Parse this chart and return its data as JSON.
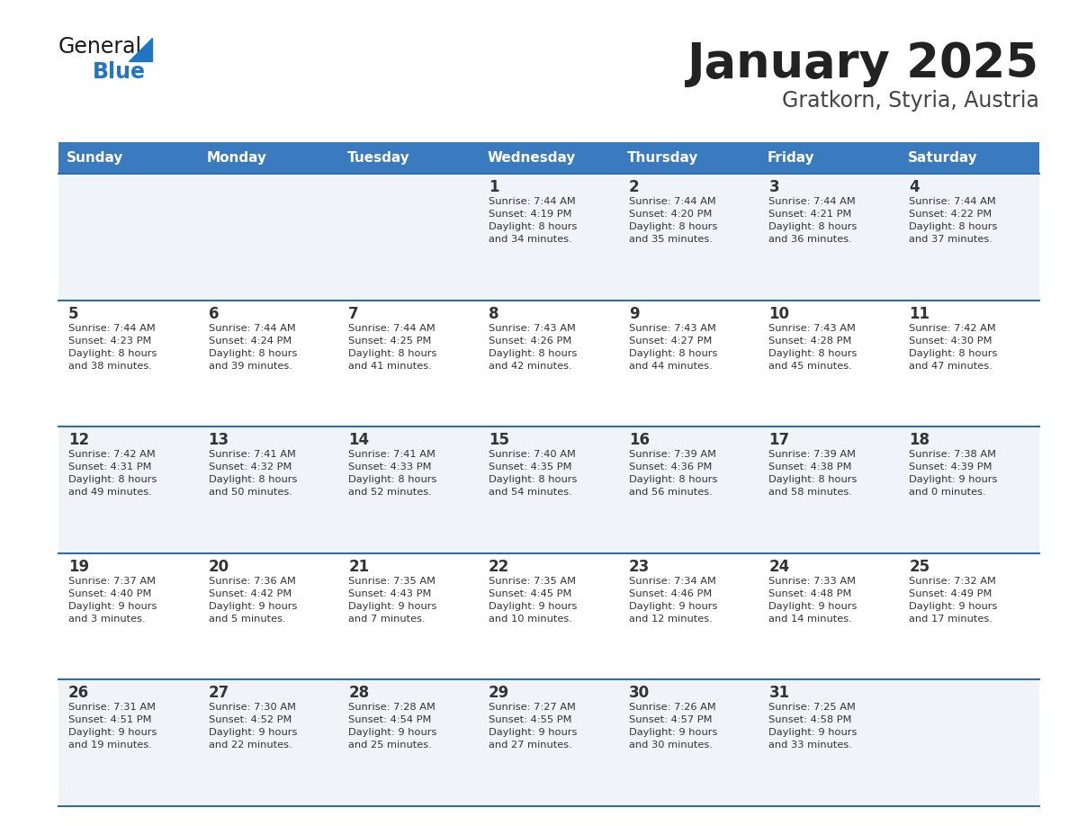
{
  "title": "January 2025",
  "subtitle": "Gratkorn, Styria, Austria",
  "days_of_week": [
    "Sunday",
    "Monday",
    "Tuesday",
    "Wednesday",
    "Thursday",
    "Friday",
    "Saturday"
  ],
  "header_bg": "#3a7abf",
  "header_text": "#ffffff",
  "row_bg_odd": "#f0f4f8",
  "row_bg_even": "#ffffff",
  "separator_color": "#2e6da4",
  "day_number_color": "#333333",
  "cell_text_color": "#333333",
  "title_color": "#222222",
  "subtitle_color": "#444444",
  "logo_color_general": "#1a1a1a",
  "logo_color_blue": "#2176c2",
  "logo_triangle_color": "#2176c2",
  "calendar": [
    [
      {
        "day": null,
        "info": null
      },
      {
        "day": null,
        "info": null
      },
      {
        "day": null,
        "info": null
      },
      {
        "day": 1,
        "info": "Sunrise: 7:44 AM\nSunset: 4:19 PM\nDaylight: 8 hours\nand 34 minutes."
      },
      {
        "day": 2,
        "info": "Sunrise: 7:44 AM\nSunset: 4:20 PM\nDaylight: 8 hours\nand 35 minutes."
      },
      {
        "day": 3,
        "info": "Sunrise: 7:44 AM\nSunset: 4:21 PM\nDaylight: 8 hours\nand 36 minutes."
      },
      {
        "day": 4,
        "info": "Sunrise: 7:44 AM\nSunset: 4:22 PM\nDaylight: 8 hours\nand 37 minutes."
      }
    ],
    [
      {
        "day": 5,
        "info": "Sunrise: 7:44 AM\nSunset: 4:23 PM\nDaylight: 8 hours\nand 38 minutes."
      },
      {
        "day": 6,
        "info": "Sunrise: 7:44 AM\nSunset: 4:24 PM\nDaylight: 8 hours\nand 39 minutes."
      },
      {
        "day": 7,
        "info": "Sunrise: 7:44 AM\nSunset: 4:25 PM\nDaylight: 8 hours\nand 41 minutes."
      },
      {
        "day": 8,
        "info": "Sunrise: 7:43 AM\nSunset: 4:26 PM\nDaylight: 8 hours\nand 42 minutes."
      },
      {
        "day": 9,
        "info": "Sunrise: 7:43 AM\nSunset: 4:27 PM\nDaylight: 8 hours\nand 44 minutes."
      },
      {
        "day": 10,
        "info": "Sunrise: 7:43 AM\nSunset: 4:28 PM\nDaylight: 8 hours\nand 45 minutes."
      },
      {
        "day": 11,
        "info": "Sunrise: 7:42 AM\nSunset: 4:30 PM\nDaylight: 8 hours\nand 47 minutes."
      }
    ],
    [
      {
        "day": 12,
        "info": "Sunrise: 7:42 AM\nSunset: 4:31 PM\nDaylight: 8 hours\nand 49 minutes."
      },
      {
        "day": 13,
        "info": "Sunrise: 7:41 AM\nSunset: 4:32 PM\nDaylight: 8 hours\nand 50 minutes."
      },
      {
        "day": 14,
        "info": "Sunrise: 7:41 AM\nSunset: 4:33 PM\nDaylight: 8 hours\nand 52 minutes."
      },
      {
        "day": 15,
        "info": "Sunrise: 7:40 AM\nSunset: 4:35 PM\nDaylight: 8 hours\nand 54 minutes."
      },
      {
        "day": 16,
        "info": "Sunrise: 7:39 AM\nSunset: 4:36 PM\nDaylight: 8 hours\nand 56 minutes."
      },
      {
        "day": 17,
        "info": "Sunrise: 7:39 AM\nSunset: 4:38 PM\nDaylight: 8 hours\nand 58 minutes."
      },
      {
        "day": 18,
        "info": "Sunrise: 7:38 AM\nSunset: 4:39 PM\nDaylight: 9 hours\nand 0 minutes."
      }
    ],
    [
      {
        "day": 19,
        "info": "Sunrise: 7:37 AM\nSunset: 4:40 PM\nDaylight: 9 hours\nand 3 minutes."
      },
      {
        "day": 20,
        "info": "Sunrise: 7:36 AM\nSunset: 4:42 PM\nDaylight: 9 hours\nand 5 minutes."
      },
      {
        "day": 21,
        "info": "Sunrise: 7:35 AM\nSunset: 4:43 PM\nDaylight: 9 hours\nand 7 minutes."
      },
      {
        "day": 22,
        "info": "Sunrise: 7:35 AM\nSunset: 4:45 PM\nDaylight: 9 hours\nand 10 minutes."
      },
      {
        "day": 23,
        "info": "Sunrise: 7:34 AM\nSunset: 4:46 PM\nDaylight: 9 hours\nand 12 minutes."
      },
      {
        "day": 24,
        "info": "Sunrise: 7:33 AM\nSunset: 4:48 PM\nDaylight: 9 hours\nand 14 minutes."
      },
      {
        "day": 25,
        "info": "Sunrise: 7:32 AM\nSunset: 4:49 PM\nDaylight: 9 hours\nand 17 minutes."
      }
    ],
    [
      {
        "day": 26,
        "info": "Sunrise: 7:31 AM\nSunset: 4:51 PM\nDaylight: 9 hours\nand 19 minutes."
      },
      {
        "day": 27,
        "info": "Sunrise: 7:30 AM\nSunset: 4:52 PM\nDaylight: 9 hours\nand 22 minutes."
      },
      {
        "day": 28,
        "info": "Sunrise: 7:28 AM\nSunset: 4:54 PM\nDaylight: 9 hours\nand 25 minutes."
      },
      {
        "day": 29,
        "info": "Sunrise: 7:27 AM\nSunset: 4:55 PM\nDaylight: 9 hours\nand 27 minutes."
      },
      {
        "day": 30,
        "info": "Sunrise: 7:26 AM\nSunset: 4:57 PM\nDaylight: 9 hours\nand 30 minutes."
      },
      {
        "day": 31,
        "info": "Sunrise: 7:25 AM\nSunset: 4:58 PM\nDaylight: 9 hours\nand 33 minutes."
      },
      {
        "day": null,
        "info": null
      }
    ]
  ]
}
